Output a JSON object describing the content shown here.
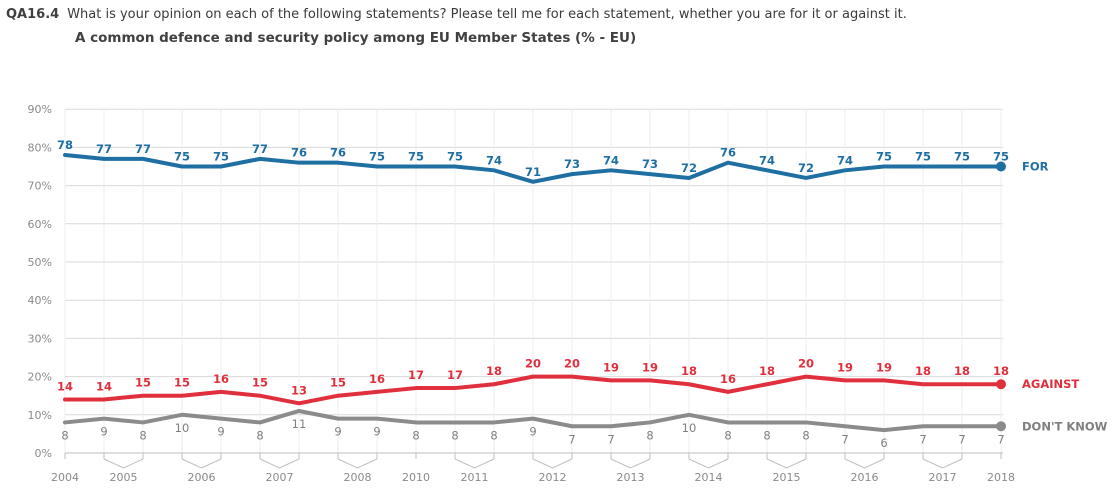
{
  "header": {
    "question_code": "QA16.4",
    "question_text": "What is your opinion on each of the following statements? Please tell me for each statement, whether you are for it or against it.",
    "subtitle": "A common defence and security policy among EU Member States (% - EU)"
  },
  "colors": {
    "for": "#1f6fa3",
    "against": "#e0303d",
    "dont_know": "#8c8a8c",
    "grid": "#d9d9d9",
    "axis_text": "#8a8a8a"
  },
  "chart_data": {
    "type": "line",
    "title": "A common defence and security policy among EU Member States (% - EU)",
    "ylim": [
      0,
      90
    ],
    "yticks": [
      "0%",
      "10%",
      "20%",
      "30%",
      "40%",
      "50%",
      "60%",
      "70%",
      "80%",
      "90%"
    ],
    "grid": true,
    "year_labels": [
      "2004",
      "2005",
      "2006",
      "2007",
      "2008",
      "2010",
      "2011",
      "2012",
      "2013",
      "2014",
      "2015",
      "2016",
      "2017",
      "2018"
    ],
    "series": [
      {
        "name": "FOR",
        "values": [
          78,
          77,
          77,
          75,
          75,
          77,
          76,
          76,
          75,
          75,
          75,
          74,
          71,
          73,
          74,
          73,
          72,
          76,
          74,
          72,
          74,
          75,
          75,
          75,
          75
        ]
      },
      {
        "name": "AGAINST",
        "values": [
          14,
          14,
          15,
          15,
          16,
          15,
          13,
          15,
          16,
          17,
          17,
          18,
          20,
          20,
          19,
          19,
          18,
          16,
          18,
          20,
          19,
          19,
          18,
          18,
          18
        ]
      },
      {
        "name": "DON'T KNOW",
        "values": [
          8,
          9,
          8,
          10,
          9,
          8,
          11,
          9,
          9,
          8,
          8,
          8,
          9,
          7,
          7,
          8,
          10,
          8,
          8,
          8,
          7,
          6,
          7,
          7,
          7
        ]
      }
    ]
  }
}
